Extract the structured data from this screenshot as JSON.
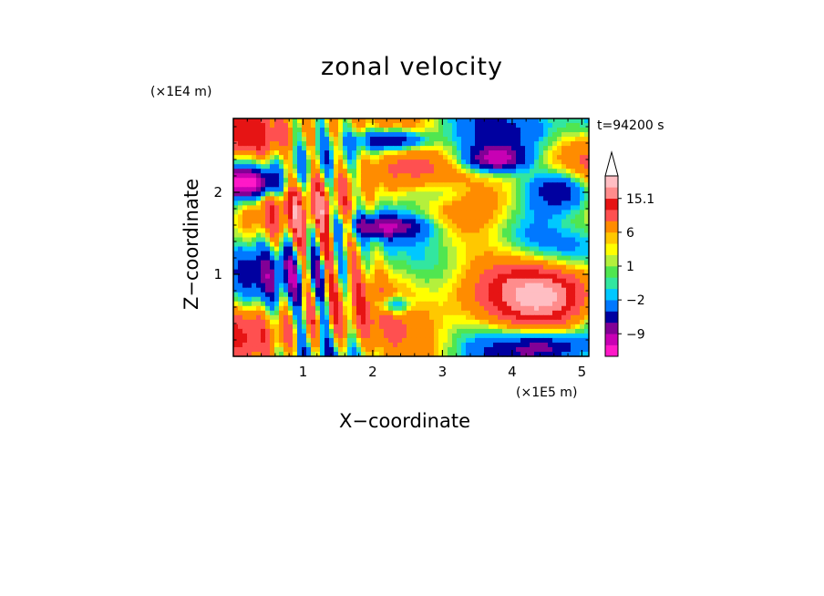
{
  "chart_data": {
    "type": "heatmap",
    "title": "zonal velocity",
    "xlabel": "X−coordinate",
    "ylabel": "Z−coordinate",
    "x_unit": "(×1E5 m)",
    "y_unit": "(×1E4 m)",
    "time_label": "t=94200 s",
    "xlim": [
      0,
      5.1
    ],
    "ylim": [
      0,
      2.9
    ],
    "x_ticks": [
      "1",
      "2",
      "3",
      "4",
      "5"
    ],
    "x_tick_values": [
      1,
      2,
      3,
      4,
      5
    ],
    "y_ticks": [
      "1",
      "2"
    ],
    "y_tick_values": [
      1,
      2
    ],
    "colorbar": {
      "labels": [
        "15.1",
        "6",
        "1",
        "−2",
        "−9"
      ],
      "label_values": [
        15.1,
        6,
        1,
        -2,
        -9
      ],
      "levels": [
        -15,
        -12,
        -9,
        -6,
        -3,
        -2,
        -1,
        0,
        1,
        2,
        3,
        6,
        9,
        12,
        15.1
      ],
      "colors": [
        "#ff19c8",
        "#c800b4",
        "#820096",
        "#0000a0",
        "#0078ff",
        "#00c8ff",
        "#32e6a0",
        "#50e650",
        "#b4f03c",
        "#ffff00",
        "#ffc800",
        "#ff8c00",
        "#ff5050",
        "#e61414",
        "#ff8c8c",
        "#ffbec3"
      ],
      "extend": "max"
    },
    "grid": false
  }
}
